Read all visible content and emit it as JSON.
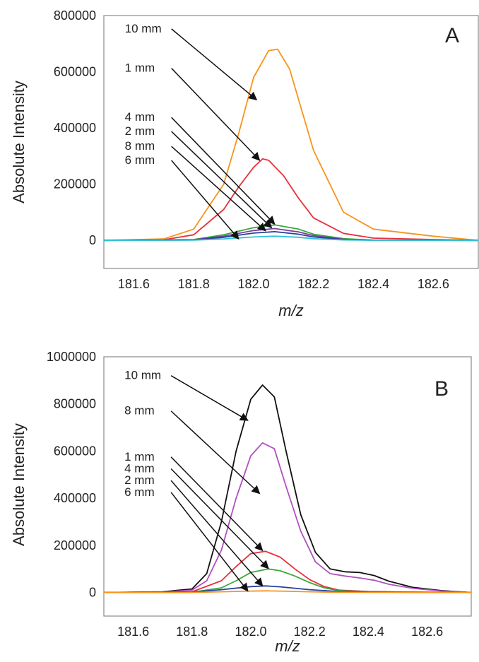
{
  "chart_data": [
    {
      "type": "line",
      "panel_label": "A",
      "xlabel": "m/z",
      "ylabel": "Absolute Intensity",
      "xlim": [
        181.5,
        182.75
      ],
      "ylim": [
        -100000,
        800000
      ],
      "x_ticks": [
        "181.6",
        "181.8",
        "182.0",
        "182.2",
        "182.4",
        "182.6"
      ],
      "x_tick_values": [
        181.6,
        181.8,
        182.0,
        182.2,
        182.4,
        182.6
      ],
      "y_ticks": [
        "800000",
        "600000",
        "400000",
        "200000",
        "0"
      ],
      "y_tick_values": [
        800000,
        600000,
        400000,
        200000,
        0
      ],
      "grid": false,
      "series": [
        {
          "name": "10 mm",
          "color": "#f7941d",
          "x": [
            181.5,
            181.7,
            181.8,
            181.9,
            181.95,
            182.0,
            182.05,
            182.08,
            182.12,
            182.2,
            182.3,
            182.4,
            182.6,
            182.75
          ],
          "y": [
            0,
            5000,
            40000,
            200000,
            380000,
            580000,
            675000,
            680000,
            610000,
            320000,
            100000,
            40000,
            15000,
            0
          ],
          "annotation": {
            "label_x": 181.57,
            "label_y": 740000,
            "arrow_x": 182.01,
            "arrow_y": 500000
          }
        },
        {
          "name": "1 mm",
          "color": "#e8303a",
          "x": [
            181.5,
            181.7,
            181.8,
            181.9,
            181.95,
            182.0,
            182.03,
            182.05,
            182.1,
            182.15,
            182.2,
            182.3,
            182.4,
            182.6,
            182.75
          ],
          "y": [
            0,
            2000,
            20000,
            110000,
            190000,
            260000,
            290000,
            285000,
            230000,
            150000,
            80000,
            25000,
            8000,
            3000,
            0
          ],
          "annotation": {
            "label_x": 181.57,
            "label_y": 600000,
            "arrow_x": 182.02,
            "arrow_y": 285000
          }
        },
        {
          "name": "4 mm",
          "color": "#3aa83a",
          "x": [
            181.5,
            181.8,
            181.9,
            182.0,
            182.07,
            182.15,
            182.2,
            182.3,
            182.4,
            182.75
          ],
          "y": [
            0,
            3000,
            20000,
            45000,
            55000,
            40000,
            22000,
            6000,
            1000,
            0
          ],
          "annotation": {
            "label_x": 181.57,
            "label_y": 425000,
            "arrow_x": 182.07,
            "arrow_y": 58000
          }
        },
        {
          "name": "2 mm",
          "color": "#7b3fa0",
          "x": [
            181.5,
            181.8,
            181.9,
            182.0,
            182.07,
            182.15,
            182.2,
            182.3,
            182.4,
            182.75
          ],
          "y": [
            0,
            2000,
            15000,
            35000,
            42000,
            30000,
            17000,
            4000,
            800,
            0
          ],
          "annotation": {
            "label_x": 181.57,
            "label_y": 375000,
            "arrow_x": 182.06,
            "arrow_y": 45000
          }
        },
        {
          "name": "8 mm",
          "color": "#2b3f9a",
          "x": [
            181.5,
            181.8,
            181.9,
            182.0,
            182.07,
            182.15,
            182.2,
            182.3,
            182.4,
            182.75
          ],
          "y": [
            0,
            1500,
            11000,
            26000,
            31000,
            22000,
            12000,
            3000,
            500,
            0
          ],
          "annotation": {
            "label_x": 181.57,
            "label_y": 322000,
            "arrow_x": 182.04,
            "arrow_y": 34000
          }
        },
        {
          "name": "6 mm",
          "color": "#33c0d8",
          "x": [
            181.5,
            181.8,
            181.9,
            182.0,
            182.07,
            182.15,
            182.2,
            182.3,
            182.4,
            182.75
          ],
          "y": [
            0,
            800,
            5000,
            12000,
            15000,
            11000,
            6000,
            1500,
            300,
            0
          ],
          "annotation": {
            "label_x": 181.57,
            "label_y": 272000,
            "arrow_x": 181.95,
            "arrow_y": 5000
          }
        }
      ]
    },
    {
      "type": "line",
      "panel_label": "B",
      "xlabel": "m/z",
      "ylabel": "Absolute Intensity",
      "xlim": [
        181.5,
        182.75
      ],
      "ylim": [
        -100000,
        1000000
      ],
      "x_ticks": [
        "181.6",
        "181.8",
        "182.0",
        "182.2",
        "182.4",
        "182.6"
      ],
      "x_tick_values": [
        181.6,
        181.8,
        182.0,
        182.2,
        182.4,
        182.6
      ],
      "y_ticks": [
        "1000000",
        "800000",
        "600000",
        "400000",
        "200000",
        "0"
      ],
      "y_tick_values": [
        1000000,
        800000,
        600000,
        400000,
        200000,
        0
      ],
      "grid": false,
      "series": [
        {
          "name": "10 mm",
          "color": "#111111",
          "x": [
            181.5,
            181.7,
            181.8,
            181.85,
            181.9,
            181.95,
            182.0,
            182.04,
            182.08,
            182.12,
            182.17,
            182.22,
            182.27,
            182.32,
            182.37,
            182.42,
            182.47,
            182.55,
            182.65,
            182.75
          ],
          "y": [
            0,
            3000,
            15000,
            80000,
            300000,
            600000,
            820000,
            880000,
            830000,
            600000,
            330000,
            170000,
            100000,
            88000,
            85000,
            72000,
            48000,
            22000,
            8000,
            0
          ],
          "annotation": {
            "label_x": 181.57,
            "label_y": 905000,
            "arrow_x": 181.99,
            "arrow_y": 730000
          }
        },
        {
          "name": "8 mm",
          "color": "#b050c0",
          "x": [
            181.5,
            181.7,
            181.8,
            181.85,
            181.9,
            181.95,
            182.0,
            182.04,
            182.08,
            182.12,
            182.17,
            182.22,
            182.27,
            182.32,
            182.37,
            182.42,
            182.47,
            182.55,
            182.65,
            182.75
          ],
          "y": [
            0,
            2000,
            10000,
            50000,
            180000,
            400000,
            580000,
            635000,
            610000,
            450000,
            260000,
            130000,
            80000,
            70000,
            62000,
            52000,
            35000,
            18000,
            6000,
            0
          ],
          "annotation": {
            "label_x": 181.57,
            "label_y": 755000,
            "arrow_x": 182.03,
            "arrow_y": 420000
          }
        },
        {
          "name": "1 mm",
          "color": "#e8303a",
          "x": [
            181.5,
            181.8,
            181.9,
            181.95,
            182.0,
            182.05,
            182.1,
            182.15,
            182.2,
            182.25,
            182.3,
            182.4,
            182.55,
            182.75
          ],
          "y": [
            0,
            3000,
            50000,
            110000,
            165000,
            175000,
            150000,
            100000,
            55000,
            25000,
            10000,
            4000,
            1500,
            0
          ],
          "annotation": {
            "label_x": 181.57,
            "label_y": 560000,
            "arrow_x": 182.04,
            "arrow_y": 178000
          }
        },
        {
          "name": "4 mm",
          "color": "#3aa83a",
          "x": [
            181.5,
            181.8,
            181.9,
            181.95,
            182.0,
            182.06,
            182.1,
            182.15,
            182.2,
            182.25,
            182.3,
            182.4,
            182.55,
            182.75
          ],
          "y": [
            0,
            1000,
            20000,
            50000,
            85000,
            100000,
            92000,
            70000,
            42000,
            20000,
            8000,
            3000,
            1000,
            0
          ],
          "annotation": {
            "label_x": 181.57,
            "label_y": 510000,
            "arrow_x": 182.06,
            "arrow_y": 102000
          }
        },
        {
          "name": "2 mm",
          "color": "#2b3f9a",
          "x": [
            181.5,
            181.8,
            181.9,
            182.0,
            182.05,
            182.1,
            182.2,
            182.3,
            182.75
          ],
          "y": [
            0,
            2000,
            12000,
            25000,
            28000,
            24000,
            12000,
            4000,
            0
          ],
          "annotation": {
            "label_x": 181.57,
            "label_y": 460000,
            "arrow_x": 182.04,
            "arrow_y": 28000
          }
        },
        {
          "name": "6 mm",
          "color": "#f7941d",
          "x": [
            181.5,
            181.8,
            181.9,
            182.0,
            182.05,
            182.1,
            182.2,
            182.3,
            182.75
          ],
          "y": [
            0,
            500,
            3000,
            6000,
            7000,
            6000,
            3000,
            1000,
            0
          ],
          "annotation": {
            "label_x": 181.57,
            "label_y": 410000,
            "arrow_x": 181.99,
            "arrow_y": 6000
          }
        }
      ]
    }
  ]
}
